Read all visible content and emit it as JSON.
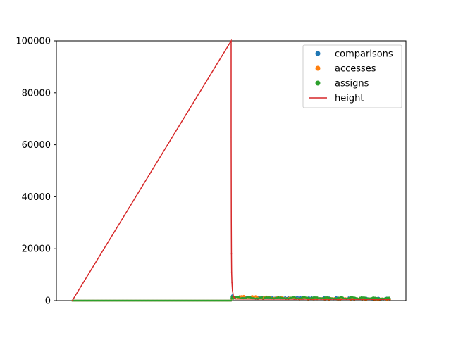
{
  "chart_data": {
    "type": "line",
    "title": "",
    "xlabel": "",
    "ylabel": "",
    "x_ticks_shown": false,
    "ylim": [
      0,
      100000
    ],
    "xlim": [
      -10000,
      210000
    ],
    "y_ticks": [
      0,
      20000,
      40000,
      60000,
      80000,
      100000
    ],
    "y_tick_labels": [
      "0",
      "20000",
      "40000",
      "60000",
      "80000",
      "100000"
    ],
    "legend_position": "top-right",
    "series": [
      {
        "name": "comparisons",
        "kind": "scatter",
        "color": "#1f77b4",
        "description_points": [
          [
            0,
            0
          ],
          [
            100000,
            0
          ],
          [
            100500,
            1500
          ],
          [
            101000,
            900
          ],
          [
            150000,
            800
          ],
          [
            200000,
            700
          ]
        ]
      },
      {
        "name": "accesses",
        "kind": "scatter",
        "color": "#ff7f0e",
        "description_points": [
          [
            0,
            0
          ],
          [
            100000,
            0
          ],
          [
            100500,
            1200
          ],
          [
            150000,
            600
          ],
          [
            200000,
            500
          ]
        ]
      },
      {
        "name": "assigns",
        "kind": "scatter",
        "color": "#2ca02c",
        "description_points": [
          [
            0,
            0
          ],
          [
            100000,
            0
          ],
          [
            100300,
            2000
          ],
          [
            101000,
            900
          ],
          [
            120000,
            800
          ],
          [
            150000,
            800
          ],
          [
            180000,
            800
          ],
          [
            200000,
            700
          ]
        ]
      },
      {
        "name": "height",
        "kind": "line",
        "color": "#d62728",
        "description_points": [
          [
            0,
            0
          ],
          [
            100000,
            100000
          ],
          [
            100000,
            63000
          ],
          [
            100100,
            31000
          ],
          [
            100200,
            18000
          ],
          [
            100300,
            11000
          ],
          [
            100500,
            7000
          ],
          [
            100800,
            4000
          ],
          [
            101500,
            1500
          ],
          [
            103000,
            600
          ],
          [
            200000,
            500
          ]
        ]
      }
    ]
  }
}
